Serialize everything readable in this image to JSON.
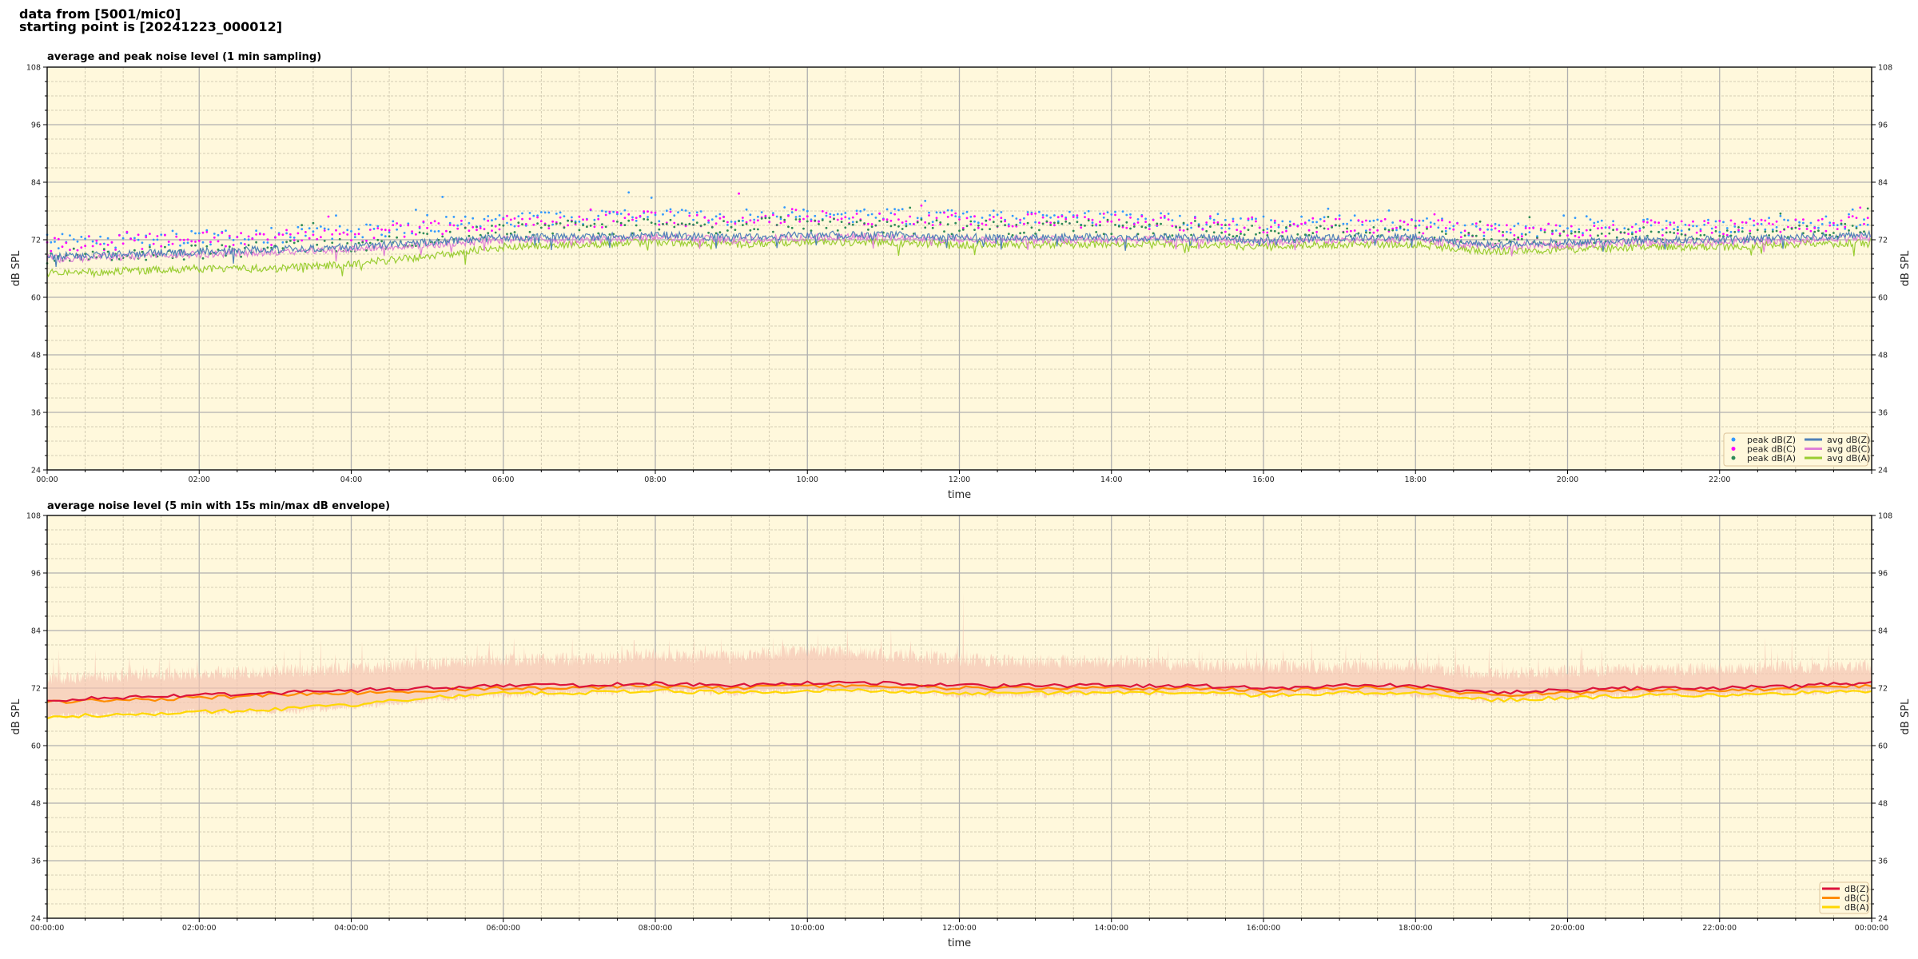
{
  "header": {
    "line1": "data from [5001/mic0]",
    "line2": "starting point is [20241223_000012]"
  },
  "colors": {
    "plot_background": "#fff8dc",
    "peak_z": "#3399ff",
    "peak_c": "#ff00ff",
    "peak_a": "#2e8b57",
    "avg_z": "#4f81b8",
    "avg_c": "#e07fd6",
    "avg_a": "#9acd32",
    "db_z": "#dc143c",
    "db_c": "#ff8c00",
    "db_a": "#ffd700",
    "envelope": "#f5c4b2"
  },
  "chart_data": [
    {
      "type": "scatter+line",
      "title": "average and peak noise level (1 min sampling)",
      "xlabel": "time",
      "ylabel": "dB SPL",
      "ylim": [
        24,
        108
      ],
      "yticks": [
        "24",
        "36",
        "48",
        "60",
        "72",
        "84",
        "96",
        "108"
      ],
      "xlim_hours": [
        0,
        24
      ],
      "xticks": [
        "00:00",
        "02:00",
        "04:00",
        "06:00",
        "08:00",
        "10:00",
        "12:00",
        "14:00",
        "16:00",
        "18:00",
        "20:00",
        "22:00"
      ],
      "grid": true,
      "legend_placement": "lower-right",
      "x_hours": [
        0,
        1,
        2,
        3,
        4,
        5,
        6,
        7,
        8,
        9,
        10,
        11,
        12,
        13,
        14,
        15,
        16,
        17,
        18,
        19,
        20,
        21,
        22,
        23,
        24
      ],
      "series": [
        {
          "name": "peak dB(Z)",
          "kind": "scatter",
          "color_key": "peak_z",
          "values": [
            71.5,
            72,
            72.5,
            73,
            73.5,
            75,
            76,
            76.5,
            77,
            76.5,
            77.5,
            77,
            76.5,
            76.5,
            76.5,
            76,
            75.5,
            75.5,
            75.5,
            74,
            74.5,
            75,
            75,
            75.5,
            76
          ]
        },
        {
          "name": "peak dB(C)",
          "kind": "scatter",
          "color_key": "peak_c",
          "values": [
            71,
            71.5,
            72,
            72.5,
            73,
            74.5,
            75.5,
            76,
            76.5,
            76,
            77,
            76.5,
            76,
            76,
            76,
            75.5,
            75,
            75,
            75,
            73.5,
            74,
            74.5,
            74.5,
            75,
            75.5
          ]
        },
        {
          "name": "peak dB(A)",
          "kind": "scatter",
          "color_key": "peak_a",
          "values": [
            68.5,
            69,
            69.5,
            70,
            71,
            72.5,
            74,
            74.5,
            75,
            74.5,
            75.5,
            75,
            74.5,
            74.5,
            74.5,
            74,
            73.5,
            73.5,
            73.5,
            72,
            72.5,
            73,
            73,
            73.5,
            74
          ]
        },
        {
          "name": "avg dB(Z)",
          "kind": "line",
          "color_key": "avg_z",
          "values": [
            68.5,
            69,
            69.5,
            70,
            70.5,
            71.5,
            72.5,
            72.5,
            73,
            72.5,
            73,
            73,
            72.5,
            72.5,
            72.5,
            72.5,
            72,
            72.5,
            72.5,
            71,
            71.5,
            72,
            72,
            72.5,
            73
          ]
        },
        {
          "name": "avg dB(C)",
          "kind": "line",
          "color_key": "avg_c",
          "values": [
            68,
            68.5,
            69,
            69.5,
            70,
            71,
            72,
            72,
            72.5,
            72,
            72.5,
            72.5,
            72,
            72,
            72,
            72,
            71.5,
            72,
            72,
            70.5,
            71,
            71.5,
            71.5,
            72,
            72.5
          ]
        },
        {
          "name": "avg dB(A)",
          "kind": "line",
          "color_key": "avg_a",
          "values": [
            65,
            65.5,
            66,
            66,
            67,
            68.5,
            70.5,
            71,
            71.5,
            71,
            71.5,
            71.5,
            71,
            71,
            71,
            71,
            70.5,
            71,
            71,
            69.5,
            70,
            70.5,
            70.5,
            71,
            71.5
          ]
        }
      ]
    },
    {
      "type": "line+area",
      "title": "average noise level (5 min with 15s min/max dB envelope)",
      "xlabel": "time",
      "ylabel": "dB SPL",
      "ylim": [
        24,
        108
      ],
      "yticks": [
        "24",
        "36",
        "48",
        "60",
        "72",
        "84",
        "96",
        "108"
      ],
      "xlim_hours": [
        0,
        24
      ],
      "xticks": [
        "00:00:00",
        "02:00:00",
        "04:00:00",
        "06:00:00",
        "08:00:00",
        "10:00:00",
        "12:00:00",
        "14:00:00",
        "16:00:00",
        "18:00:00",
        "20:00:00",
        "22:00:00",
        "00:00:00"
      ],
      "grid": true,
      "legend_placement": "lower-right",
      "x_hours": [
        0,
        1,
        2,
        3,
        4,
        5,
        6,
        7,
        8,
        9,
        10,
        11,
        12,
        13,
        14,
        15,
        16,
        17,
        18,
        19,
        20,
        21,
        22,
        23,
        24
      ],
      "envelope_max": [
        74,
        74.5,
        75,
        75.5,
        76,
        77,
        78,
        78,
        79,
        78.5,
        80,
        79,
        78,
        77.5,
        77.5,
        77,
        76.5,
        76.5,
        76.5,
        75,
        75.5,
        76,
        76,
        76.5,
        76.5
      ],
      "envelope_min": [
        66,
        66.5,
        67,
        67,
        68,
        69.5,
        70.5,
        71,
        71.5,
        71,
        71.5,
        71.5,
        70.5,
        70.5,
        71,
        71,
        70.5,
        71,
        70.5,
        69.5,
        70,
        70.5,
        70.5,
        71,
        71.5
      ],
      "series": [
        {
          "name": "dB(Z)",
          "color_key": "db_z",
          "values": [
            69.5,
            70,
            70.5,
            71,
            71.5,
            72,
            72.5,
            72.5,
            73,
            72.5,
            73,
            73,
            72.5,
            72.5,
            72.5,
            72.5,
            72,
            72.5,
            72.5,
            71,
            71.5,
            72,
            72,
            72.5,
            73
          ]
        },
        {
          "name": "dB(C)",
          "color_key": "db_c",
          "values": [
            69,
            69.5,
            70,
            70.5,
            71,
            71.5,
            72,
            72,
            72.5,
            72,
            72.5,
            72.5,
            72,
            72,
            72,
            72,
            71.5,
            72,
            72,
            70.5,
            71,
            71.5,
            71.5,
            72,
            72.5
          ]
        },
        {
          "name": "dB(A)",
          "color_key": "db_a",
          "values": [
            66,
            66.5,
            67,
            67.5,
            68.5,
            70,
            71,
            71,
            71.5,
            71,
            71.5,
            71.5,
            71,
            71,
            71,
            71,
            70.5,
            71,
            71,
            69.5,
            70,
            70.5,
            70.5,
            71,
            71.5
          ]
        }
      ]
    }
  ]
}
